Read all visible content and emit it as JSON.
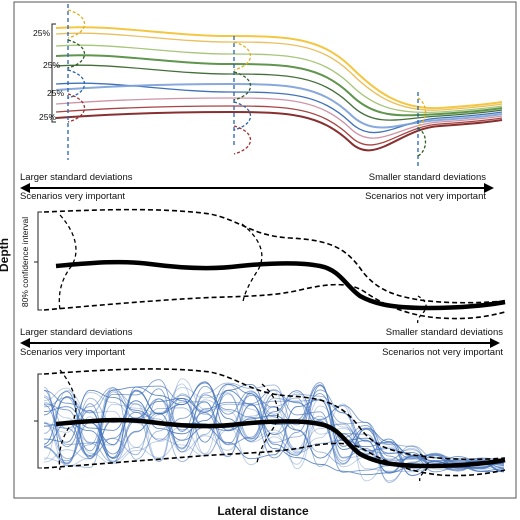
{
  "axes": {
    "y_label": "Depth",
    "x_label": "Lateral distance"
  },
  "panel_top": {
    "percent_labels": [
      "25%",
      "25%",
      "25%",
      "25%"
    ],
    "line_colors": [
      "#f2c12e",
      "#e8b84a",
      "#9cc06a",
      "#4e8a3a",
      "#2f5f25",
      "#2a63b0",
      "#7aa0d8",
      "#c98a9a",
      "#a03030",
      "#7a1a1a"
    ]
  },
  "arrow_1": {
    "left_top": "Larger standard deviations",
    "left_bottom": "Scenarios very important",
    "right_top": "Smaller standard deviations",
    "right_bottom": "Scenarios not very important"
  },
  "panel_middle": {
    "interval_label": "80% confidence interval"
  },
  "arrow_2": {
    "left_top": "Larger standard deviations",
    "left_bottom": "Scenarios very important",
    "right_top": "Smaller standard deviations",
    "right_bottom": "Scenarios not very important"
  },
  "panel_bottom": {
    "ensemble_color": "#3f6fb8"
  }
}
